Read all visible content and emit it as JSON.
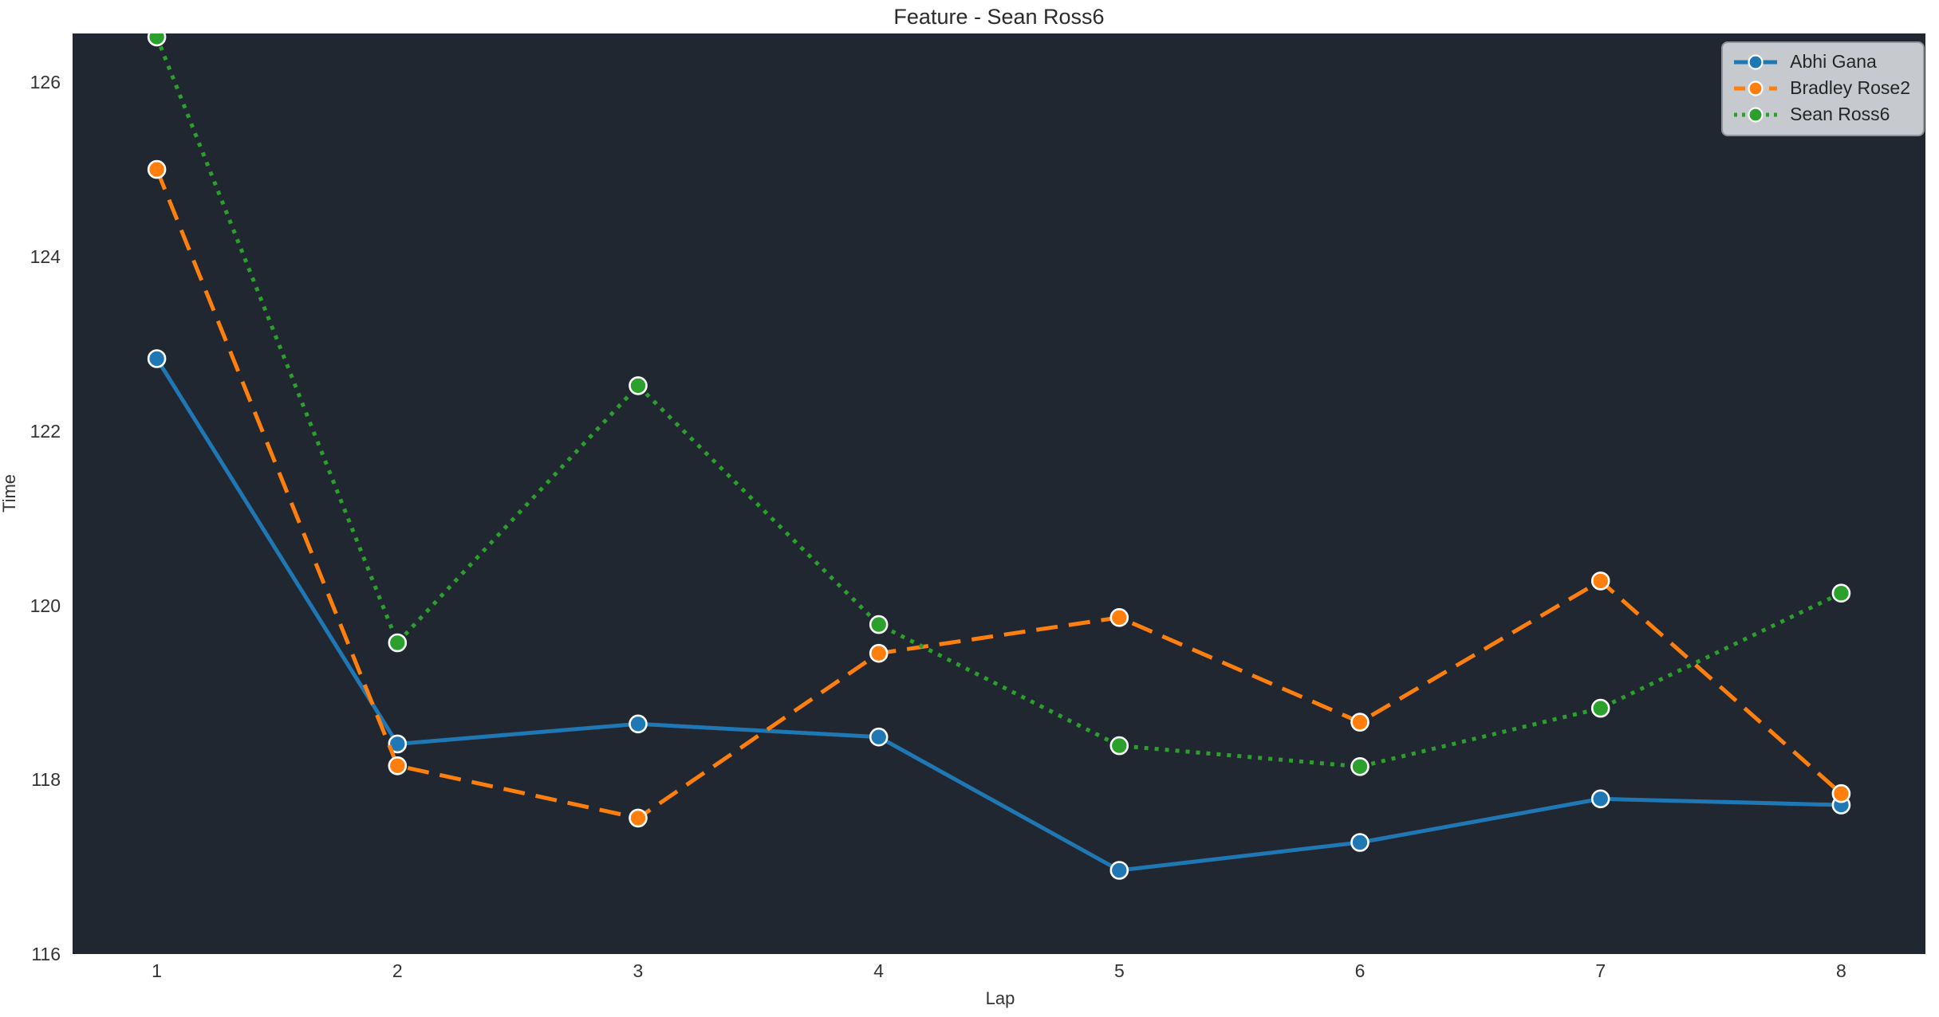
{
  "chart_data": {
    "type": "line",
    "title": "Feature - Sean Ross6",
    "xlabel": "Lap",
    "ylabel": "Time",
    "x": [
      1,
      2,
      3,
      4,
      5,
      6,
      7,
      8
    ],
    "xticks": [
      "1",
      "2",
      "3",
      "4",
      "5",
      "6",
      "7",
      "8"
    ],
    "yticks": [
      116,
      118,
      120,
      122,
      124,
      126
    ],
    "xlim": [
      0.65,
      8.35
    ],
    "ylim": [
      116.0,
      126.56
    ],
    "grid": false,
    "legend_position": "upper right",
    "plot_background": "#212730",
    "figure_background": "#ffffff",
    "marker_edge_color": "#ffffff",
    "series": [
      {
        "name": "Abhi Gana",
        "color": "#1f77b4",
        "line_style": "solid",
        "marker": "circle",
        "values": [
          122.83,
          118.41,
          118.64,
          118.49,
          116.96,
          117.28,
          117.78,
          117.71
        ]
      },
      {
        "name": "Bradley Rose2",
        "color": "#ff7f0e",
        "line_style": "dashed",
        "marker": "circle",
        "values": [
          125.0,
          118.16,
          117.56,
          119.45,
          119.86,
          118.66,
          120.28,
          117.84
        ]
      },
      {
        "name": "Sean Ross6",
        "color": "#2ca02c",
        "line_style": "dotted",
        "marker": "circle",
        "values": [
          126.52,
          119.57,
          122.52,
          119.78,
          118.39,
          118.15,
          118.82,
          120.14
        ]
      }
    ]
  }
}
